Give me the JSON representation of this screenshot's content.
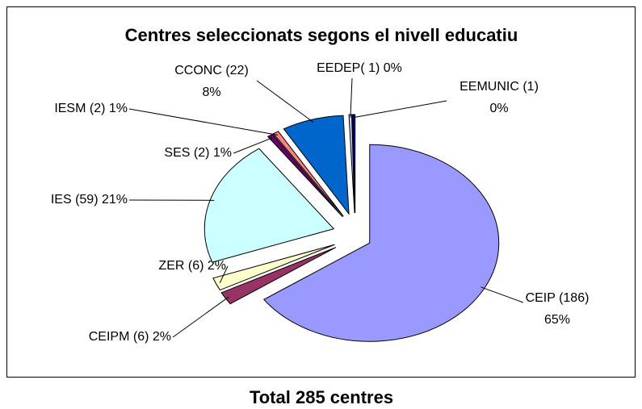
{
  "chart_data": {
    "type": "pie",
    "title": "Centres seleccionats segons el nivell educatiu",
    "categories": [
      "CEIP",
      "CEIPM",
      "ZER",
      "IES",
      "SES",
      "IESM",
      "CCONC",
      "EEDEP",
      "EEMUNIC"
    ],
    "values": [
      186,
      6,
      6,
      59,
      2,
      2,
      22,
      1,
      1
    ],
    "value_labels": [
      [
        "CEIP (186)",
        "65%"
      ],
      [
        "CEIPM (6) 2%"
      ],
      [
        "ZER (6) 2%"
      ],
      [
        "IES (59) 21%"
      ],
      [
        "SES (2) 1%"
      ],
      [
        "IESM (2) 1%"
      ],
      [
        "CCONC (22)",
        "8%"
      ],
      [
        "EEDEP( 1) 0%"
      ],
      [
        "EEMUNIC (1)",
        "0%"
      ]
    ],
    "colors": [
      "#9999ff",
      "#993366",
      "#ffffcc",
      "#ccffff",
      "#660066",
      "#ff8080",
      "#0066cc",
      "#ccccff",
      "#000080"
    ]
  },
  "footer": "Total 285 centres"
}
